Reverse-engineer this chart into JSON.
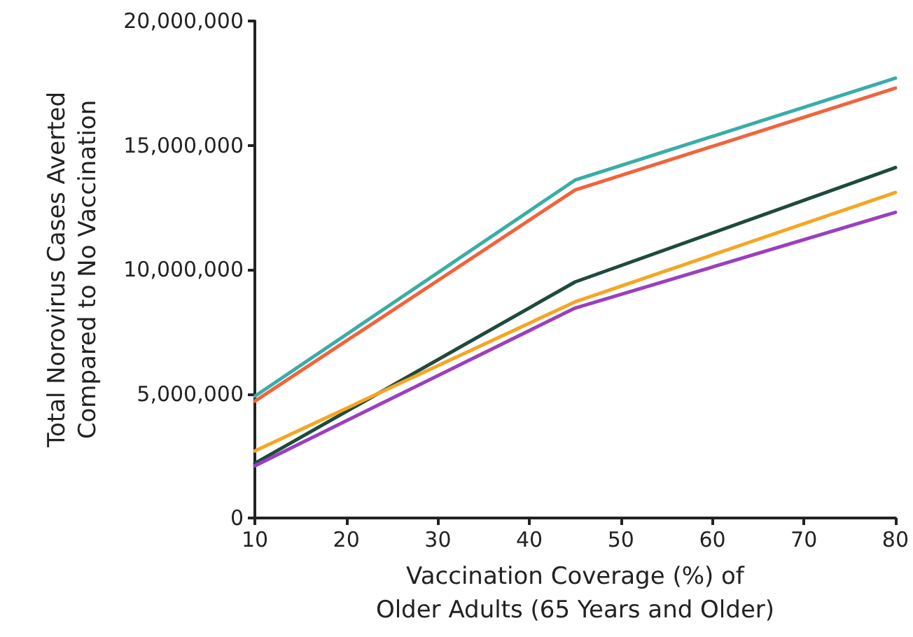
{
  "chart_data": {
    "type": "line",
    "xlabel": "Vaccination Coverage (%) of\nOlder Adults (65 Years and Older)",
    "ylabel": "Total Norovirus Cases Averted\nCompared to No Vaccination",
    "x": [
      10,
      45,
      80
    ],
    "series": [
      {
        "color": "#3aada8",
        "values": [
          4900000,
          13600000,
          17700000
        ]
      },
      {
        "color": "#f0643c",
        "values": [
          4700000,
          13200000,
          17300000
        ]
      },
      {
        "color": "#1f4a3e",
        "values": [
          2200000,
          9500000,
          14100000
        ]
      },
      {
        "color": "#f5a623",
        "values": [
          2700000,
          8700000,
          13100000
        ]
      },
      {
        "color": "#9b3fbf",
        "values": [
          2100000,
          8450000,
          12300000
        ]
      }
    ],
    "xlim": [
      10,
      80
    ],
    "xticks": [
      10,
      20,
      30,
      40,
      50,
      60,
      70,
      80
    ],
    "ylim": [
      0,
      20000000
    ],
    "yticks": [
      0,
      {
        "value": 5000000,
        "label": "5,000,000"
      },
      {
        "value": 10000000,
        "label": "10,000,000"
      },
      {
        "value": 15000000,
        "label": "15,000,000"
      },
      {
        "value": 20000000,
        "label": "20,000,000"
      }
    ],
    "grid": false,
    "marker": "none",
    "line_style": "solid"
  }
}
